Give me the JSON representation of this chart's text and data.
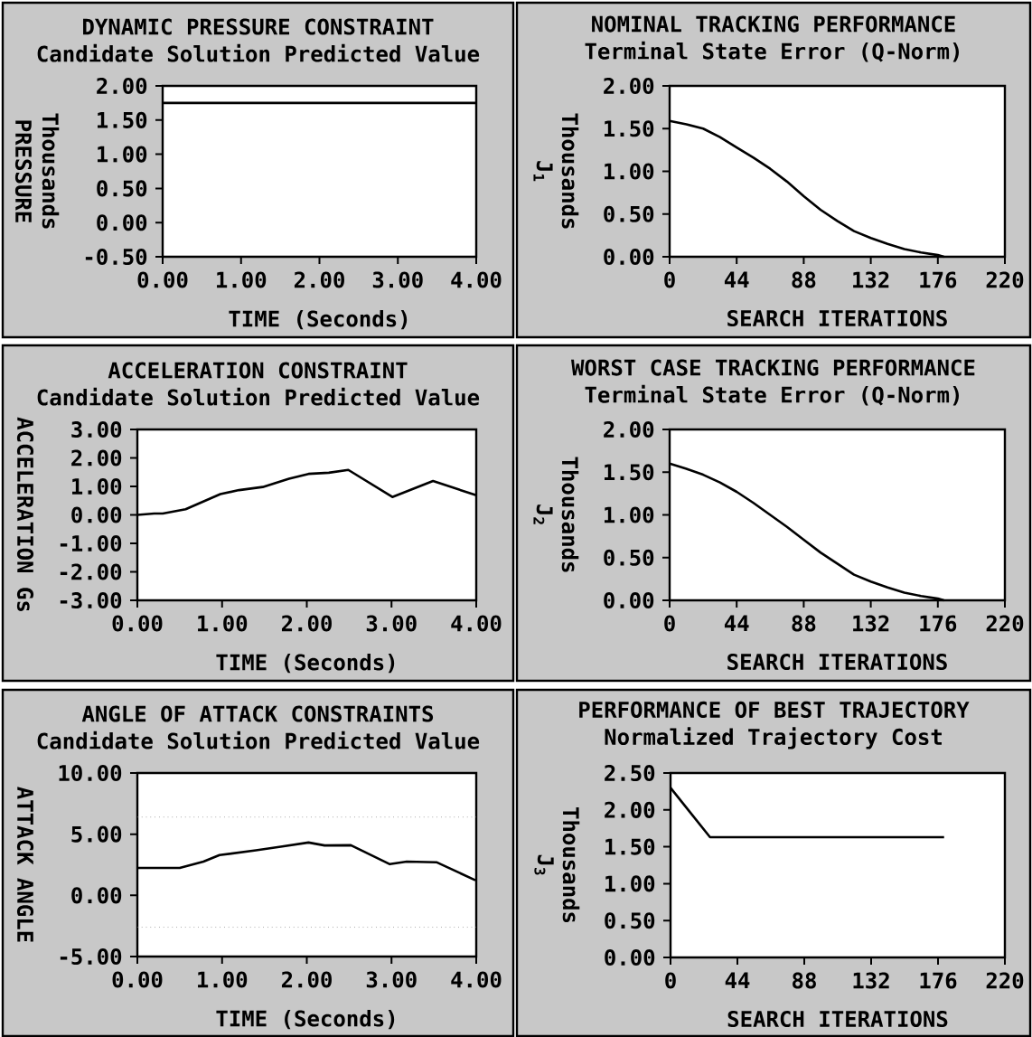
{
  "chart_data": [
    {
      "type": "line",
      "title": "DYNAMIC PRESSURE CONSTRAINT",
      "subtitle": "Candidate Solution Predicted Value",
      "xlabel": "TIME  (Seconds)",
      "ylabel": "PRESSURE",
      "annotations": [
        "Thousands"
      ],
      "color": "#000000",
      "x": [
        0,
        4
      ],
      "values": [
        1.75,
        1.75
      ],
      "xlim": [
        0,
        4
      ],
      "xticks": [
        {
          "value": 0,
          "label": "0.00"
        },
        {
          "value": 1,
          "label": "1.00"
        },
        {
          "value": 2,
          "label": "2.00"
        },
        {
          "value": 3,
          "label": "3.00"
        },
        {
          "value": 4,
          "label": "4.00"
        }
      ],
      "ylim": [
        -0.5,
        2
      ],
      "yticks": [
        {
          "value": -0.5,
          "label": "-0.50"
        },
        {
          "value": 0,
          "label": "0.00"
        },
        {
          "value": 0.5,
          "label": "0.50"
        },
        {
          "value": 1,
          "label": "1.00"
        },
        {
          "value": 1.5,
          "label": "1.50"
        },
        {
          "value": 2,
          "label": "2.00"
        }
      ]
    },
    {
      "type": "line",
      "title": "NOMINAL TRACKING PERFORMANCE",
      "subtitle": "Terminal State Error (Q-Norm)",
      "xlabel": "SEARCH ITERATIONS",
      "ylabel": "J$_{1}$",
      "annotations": [
        "Thousands"
      ],
      "color": "#000000",
      "x": [
        0,
        11,
        22,
        33,
        44,
        55,
        66,
        77,
        88,
        99,
        110,
        121,
        132,
        143,
        154,
        165,
        176,
        180
      ],
      "values": [
        1.59,
        1.55,
        1.5,
        1.4,
        1.28,
        1.16,
        1.03,
        0.88,
        0.71,
        0.55,
        0.42,
        0.3,
        0.22,
        0.15,
        0.09,
        0.05,
        0.02,
        0.0
      ],
      "xlim": [
        0,
        220
      ],
      "xticks": [
        0,
        44,
        88,
        132,
        176,
        220
      ],
      "ylim": [
        0,
        2
      ],
      "yticks": [
        {
          "value": 0,
          "label": "0.00"
        },
        {
          "value": 0.5,
          "label": "0.50"
        },
        {
          "value": 1,
          "label": "1.00"
        },
        {
          "value": 1.5,
          "label": "1.50"
        },
        {
          "value": 2,
          "label": "2.00"
        }
      ]
    },
    {
      "type": "line",
      "title": "ACCELERATION CONSTRAINT",
      "subtitle": "Candidate Solution Predicted Value",
      "xlabel": "TIME  (Seconds)",
      "ylabel": "ACCELERATION Gs",
      "color": "#000000",
      "x": [
        0,
        0.2,
        0.3,
        0.57,
        0.98,
        1.2,
        1.48,
        1.79,
        2.02,
        2.26,
        2.49,
        3.01,
        3.49,
        4.0
      ],
      "values": [
        0.0,
        0.05,
        0.05,
        0.2,
        0.73,
        0.87,
        0.98,
        1.27,
        1.44,
        1.48,
        1.58,
        0.63,
        1.19,
        0.69
      ],
      "xlim": [
        0,
        4
      ],
      "xticks": [
        {
          "value": 0,
          "label": "0.00"
        },
        {
          "value": 1,
          "label": "1.00"
        },
        {
          "value": 2,
          "label": "2.00"
        },
        {
          "value": 3,
          "label": "3.00"
        },
        {
          "value": 4,
          "label": "4.00"
        }
      ],
      "ylim": [
        -3,
        3
      ],
      "yticks": [
        {
          "value": -3,
          "label": "-3.00"
        },
        {
          "value": -2,
          "label": "-2.00"
        },
        {
          "value": -1,
          "label": "-1.00"
        },
        {
          "value": 0,
          "label": "0.00"
        },
        {
          "value": 1,
          "label": "1.00"
        },
        {
          "value": 2,
          "label": "2.00"
        },
        {
          "value": 3,
          "label": "3.00"
        }
      ]
    },
    {
      "type": "line",
      "title": "WORST CASE TRACKING PERFORMANCE",
      "subtitle": "Terminal State Error (Q-Norm)",
      "xlabel": "SEARCH ITERATIONS",
      "ylabel": "J$_{2}$",
      "annotations": [
        "Thousands"
      ],
      "color": "#000000",
      "x": [
        0,
        11,
        22,
        33,
        44,
        55,
        66,
        77,
        88,
        99,
        110,
        121,
        132,
        143,
        154,
        165,
        176,
        180
      ],
      "values": [
        1.6,
        1.54,
        1.47,
        1.38,
        1.27,
        1.14,
        1.0,
        0.86,
        0.71,
        0.56,
        0.43,
        0.3,
        0.22,
        0.15,
        0.09,
        0.05,
        0.02,
        0.0
      ],
      "xlim": [
        0,
        220
      ],
      "xticks": [
        0,
        44,
        88,
        132,
        176,
        220
      ],
      "ylim": [
        0,
        2
      ],
      "yticks": [
        {
          "value": 0,
          "label": "0.00"
        },
        {
          "value": 0.5,
          "label": "0.50"
        },
        {
          "value": 1,
          "label": "1.00"
        },
        {
          "value": 1.5,
          "label": "1.50"
        },
        {
          "value": 2,
          "label": "2.00"
        }
      ]
    },
    {
      "type": "line",
      "title": "ANGLE OF ATTACK CONSTRAINTS",
      "subtitle": "Candidate Solution Predicted Value",
      "xlabel": "TIME  (Seconds)",
      "ylabel": "ATTACK  ANGLE",
      "color": "#000000",
      "x": [
        0,
        0.5,
        0.78,
        0.97,
        1.4,
        1.71,
        2.02,
        2.21,
        2.52,
        2.98,
        3.18,
        3.53,
        3.99
      ],
      "values": [
        2.24,
        2.24,
        2.76,
        3.29,
        3.68,
        4.0,
        4.32,
        4.08,
        4.1,
        2.55,
        2.76,
        2.71,
        1.24
      ],
      "xlim": [
        0,
        4
      ],
      "xticks": [
        {
          "value": 0,
          "label": "0.00"
        },
        {
          "value": 1,
          "label": "1.00"
        },
        {
          "value": 2,
          "label": "2.00"
        },
        {
          "value": 3,
          "label": "3.00"
        },
        {
          "value": 4,
          "label": "4.00"
        }
      ],
      "ylim": [
        -5,
        10
      ],
      "yticks": [
        {
          "value": -5,
          "label": "-5.00"
        },
        {
          "value": 0,
          "label": "0.00"
        },
        {
          "value": 5,
          "label": "5.00"
        },
        {
          "value": 10,
          "label": "10.00"
        }
      ],
      "ref_lines": [
        {
          "axis": "y",
          "value": 6.4,
          "color": "#808080",
          "line_style": "dotted"
        },
        {
          "axis": "y",
          "value": -2.6,
          "color": "#808080",
          "line_style": "dotted"
        }
      ]
    },
    {
      "type": "line",
      "title": "PERFORMANCE OF BEST TRAJECTORY",
      "subtitle": "Normalized Trajectory Cost",
      "xlabel": "SEARCH ITERATIONS",
      "ylabel": "J$_{3}$",
      "annotations": [
        "Thousands"
      ],
      "color": "#000000",
      "x": [
        0,
        26,
        180
      ],
      "values": [
        2.3,
        1.63,
        1.63
      ],
      "xlim": [
        0,
        220
      ],
      "xticks": [
        0,
        44,
        88,
        132,
        176,
        220
      ],
      "ylim": [
        0,
        2.5
      ],
      "yticks": [
        {
          "value": 0,
          "label": "0.00"
        },
        {
          "value": 0.5,
          "label": "0.50"
        },
        {
          "value": 1,
          "label": "1.00"
        },
        {
          "value": 1.5,
          "label": "1.50"
        },
        {
          "value": 2,
          "label": "2.00"
        },
        {
          "value": 2.5,
          "label": "2.50"
        }
      ]
    }
  ]
}
